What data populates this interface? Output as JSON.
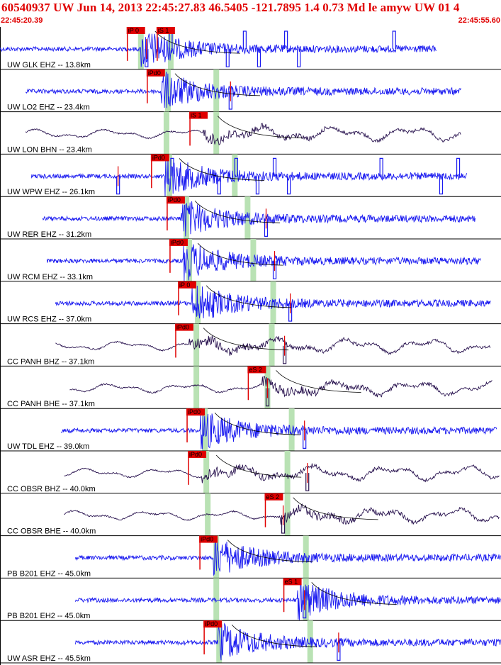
{
  "header": {
    "title": "60540937 UW Jun 14, 2013 22:45:27.83   46.5405 -121.7895  1.4 0.73 Md le amyw UW 01    4",
    "start_time": "22:45:20.39",
    "end_time": "22:45:55.60"
  },
  "colors": {
    "title": "#e00000",
    "ehz_trace": "#1a1af0",
    "broadband_trace": "#2a1450",
    "pick_flag": "#e00000",
    "pick_window": "#b9e2b4",
    "travel_curve": "#000000"
  },
  "chart_data": {
    "type": "line",
    "title": "60540937 UW Jun 14, 2013 22:45:27.83   46.5405 -121.7895  1.4 0.73 Md le amyw UW 01    4",
    "xlim": [
      "22:45:20.39",
      "22:45:55.60"
    ],
    "x_unit": "seconds",
    "window_seconds": 35.21,
    "traces": [
      {
        "label": "UW GLK EHZ -- 13.8km",
        "kind": "ehz",
        "trace_start": 0.0,
        "trace_end": 30.7,
        "picks": [
          {
            "label": "iP 0",
            "t": 8.9
          },
          {
            "label": "iS 1",
            "t": 11.0
          }
        ],
        "green": [
          9.9,
          12.0
        ],
        "spikes": [
          10.3,
          12.0,
          16.0,
          17.2,
          18.2,
          20.1,
          21.0,
          27.7
        ]
      },
      {
        "label": "UW LO2 EHZ -- 23.4km",
        "kind": "ehz",
        "trace_start": 1.8,
        "trace_end": 32.4,
        "picks": [
          {
            "label": "iPd0",
            "t": 10.3
          }
        ],
        "green": [
          11.8,
          15.2
        ],
        "spikes": [
          16.2
        ]
      },
      {
        "label": "UW LON BHN -- 23.4km",
        "kind": "bb",
        "trace_start": 1.8,
        "trace_end": 32.4,
        "picks": [
          {
            "label": "iS 1",
            "t": 13.3
          }
        ],
        "green": [
          11.7,
          15.2
        ],
        "spikes": []
      },
      {
        "label": "UW WPW EHZ -- 26.1km",
        "kind": "ehz",
        "trace_start": 2.2,
        "trace_end": 32.8,
        "picks": [
          {
            "label": "iPd0",
            "t": 10.6
          }
        ],
        "green": [
          11.9,
          16.5
        ],
        "spikes": [
          8.3,
          12.1,
          15.4,
          16.6,
          18.1,
          19.3,
          20.3,
          26.8,
          31.0,
          32.2
        ]
      },
      {
        "label": "UW RER EHZ -- 31.2km",
        "kind": "ehz",
        "trace_start": 3.0,
        "trace_end": 33.4,
        "picks": [
          {
            "label": "iPd0",
            "t": 11.7
          }
        ],
        "green": [
          13.1,
          17.4
        ],
        "spikes": [
          18.7
        ]
      },
      {
        "label": "UW RCM EHZ -- 33.1km",
        "kind": "ehz",
        "trace_start": 3.3,
        "trace_end": 33.8,
        "picks": [
          {
            "label": "iPd0",
            "t": 11.9
          }
        ],
        "green": [
          13.3,
          17.8
        ],
        "spikes": [
          19.3
        ]
      },
      {
        "label": "UW RCS EHZ -- 37.0km",
        "kind": "ehz",
        "trace_start": 3.9,
        "trace_end": 34.5,
        "picks": [
          {
            "label": "iP 0",
            "t": 12.5
          }
        ],
        "green": [
          13.9,
          19.2
        ],
        "spikes": [
          20.4
        ]
      },
      {
        "label": "CC PANH BHZ -- 37.1km",
        "kind": "bb",
        "trace_start": 3.9,
        "trace_end": 34.5,
        "picks": [
          {
            "label": "iPd0",
            "t": 12.3
          }
        ],
        "green": [
          13.8,
          19.1
        ],
        "spikes": [
          20.0
        ]
      },
      {
        "label": "CC PANH BHE -- 37.1km",
        "kind": "bb",
        "trace_start": 4.9,
        "trace_end": 34.6,
        "picks": [
          {
            "label": "eS 2",
            "t": 17.4
          }
        ],
        "green": [
          13.8,
          18.8
        ],
        "spikes": [
          18.8
        ]
      },
      {
        "label": "UW TDL EHZ -- 39.0km",
        "kind": "ehz",
        "trace_start": 4.3,
        "trace_end": 34.9,
        "picks": [
          {
            "label": "iPd0",
            "t": 13.1
          }
        ],
        "green": [
          14.4,
          20.5
        ],
        "spikes": [
          21.4
        ]
      },
      {
        "label": "CC OBSR BHZ -- 40.0km",
        "kind": "bb",
        "trace_start": 4.5,
        "trace_end": 35.1,
        "picks": [
          {
            "label": "iPd0",
            "t": 13.2
          }
        ],
        "green": [
          14.5,
          20.2
        ],
        "spikes": [
          21.6
        ]
      },
      {
        "label": "CC OBSR BHE -- 40.0km",
        "kind": "bb",
        "trace_start": 4.5,
        "trace_end": 35.1,
        "picks": [
          {
            "label": "eS 2",
            "t": 18.6
          }
        ],
        "green": [
          14.6,
          20.2
        ],
        "spikes": [
          19.9
        ]
      },
      {
        "label": "PB B201 EHZ -- 45.0km",
        "kind": "ehz",
        "trace_start": 5.3,
        "trace_end": 35.2,
        "picks": [
          {
            "label": "iPd0",
            "t": 14.0
          }
        ],
        "green": [
          15.2,
          21.5
        ],
        "spikes": []
      },
      {
        "label": "PB B201 EH2 -- 45.0km",
        "kind": "ehz",
        "trace_start": 5.3,
        "trace_end": 35.2,
        "picks": [
          {
            "label": "eS 1",
            "t": 19.9
          }
        ],
        "green": [
          15.2,
          21.5
        ],
        "spikes": [
          21.4
        ]
      },
      {
        "label": "UW ASR EHZ -- 45.5km",
        "kind": "ehz",
        "trace_start": 5.3,
        "trace_end": 35.2,
        "picks": [
          {
            "label": "iPd0",
            "t": 14.3
          }
        ],
        "green": [
          15.4,
          21.8
        ],
        "spikes": [
          23.8
        ]
      }
    ]
  }
}
